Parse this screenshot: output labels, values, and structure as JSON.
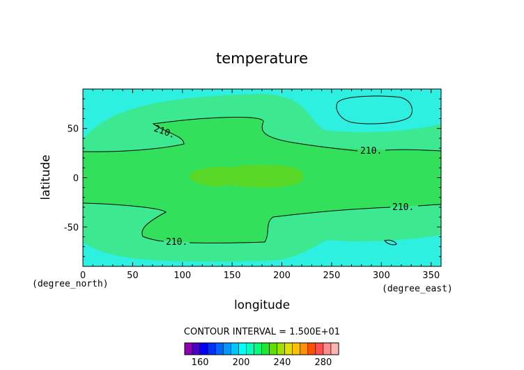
{
  "chart_data": {
    "type": "contour",
    "title": "temperature",
    "xlabel": "longitude",
    "ylabel": "latitude",
    "x_unit_label": "(degree_east)",
    "y_unit_label": "(degree_north)",
    "xlim": [
      0,
      360
    ],
    "ylim": [
      -90,
      90
    ],
    "x_ticks": [
      0,
      50,
      100,
      150,
      200,
      250,
      300,
      350
    ],
    "y_ticks": [
      -50,
      0,
      50
    ],
    "contour_interval_text": "CONTOUR INTERVAL = 1.500E+01",
    "contour_labels": [
      "210.",
      "210.",
      "210.",
      "210."
    ],
    "colorbar": {
      "min": 145,
      "max": 295,
      "ticks": [
        160,
        200,
        240,
        280
      ],
      "colors": [
        "#8b00b0",
        "#4a00c8",
        "#0000ff",
        "#0030ff",
        "#0064ff",
        "#0098ff",
        "#00c8ff",
        "#00ffff",
        "#00ffc0",
        "#00ff80",
        "#20e830",
        "#60e000",
        "#a0e000",
        "#e0e000",
        "#ffc000",
        "#ff9000",
        "#ff5000",
        "#ff5050",
        "#ff8c8c",
        "#ffb4b4"
      ]
    },
    "field_regions": [
      {
        "level": "cold",
        "color": "#2ef0e0"
      },
      {
        "level": "mid",
        "color": "#3ce890"
      },
      {
        "level": "warm",
        "color": "#32e05c"
      },
      {
        "level": "warmest",
        "color": "#5ad828"
      }
    ]
  }
}
